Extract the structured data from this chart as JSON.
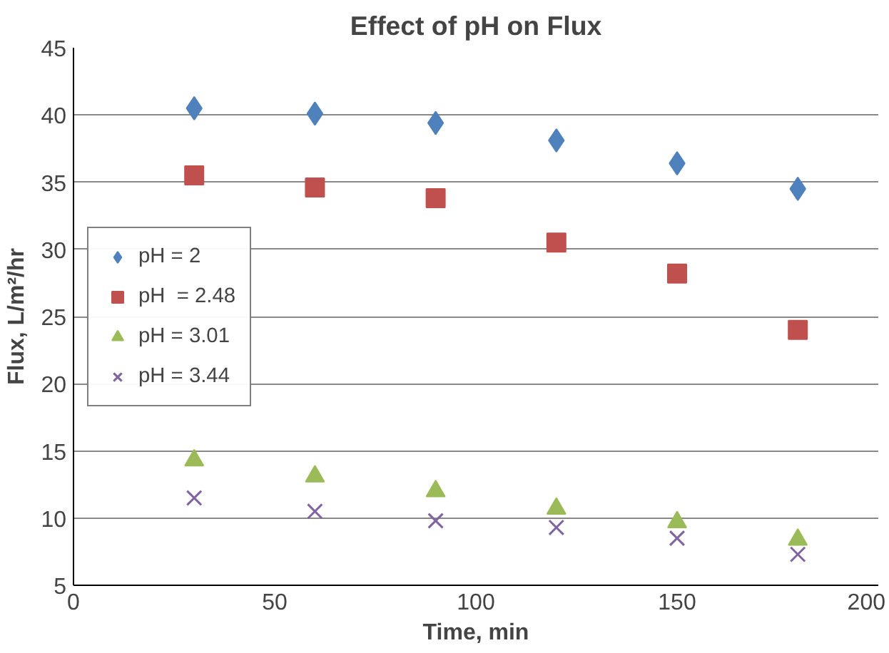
{
  "chart_data": {
    "type": "scatter",
    "title": "Effect of pH on Flux",
    "xlabel": "Time, min",
    "ylabel": "Flux, L/m²/hr",
    "x": [
      30,
      60,
      90,
      120,
      150,
      180
    ],
    "series": [
      {
        "name": "pH = 2",
        "color": "#4f81bd",
        "marker": "diamond",
        "values": [
          40.5,
          40.1,
          39.4,
          38.1,
          36.4,
          34.5
        ]
      },
      {
        "name": "pH  = 2.48",
        "color": "#c0504d",
        "marker": "square",
        "values": [
          35.5,
          34.6,
          33.8,
          30.5,
          28.2,
          24.0
        ]
      },
      {
        "name": "pH = 3.01",
        "color": "#9bbb59",
        "marker": "triangle",
        "values": [
          14.3,
          13.1,
          12.0,
          10.7,
          9.7,
          8.4
        ]
      },
      {
        "name": "pH = 3.44",
        "color": "#8064a2",
        "marker": "cross",
        "values": [
          11.5,
          10.5,
          9.8,
          9.3,
          8.5,
          7.3
        ]
      }
    ],
    "xlim": [
      0,
      200
    ],
    "xticks": [
      0,
      50,
      100,
      150,
      200
    ],
    "ylim": [
      5,
      45
    ],
    "yticks": [
      5,
      10,
      15,
      20,
      25,
      30,
      35,
      40,
      45
    ],
    "grid": "y",
    "legend": "left"
  }
}
